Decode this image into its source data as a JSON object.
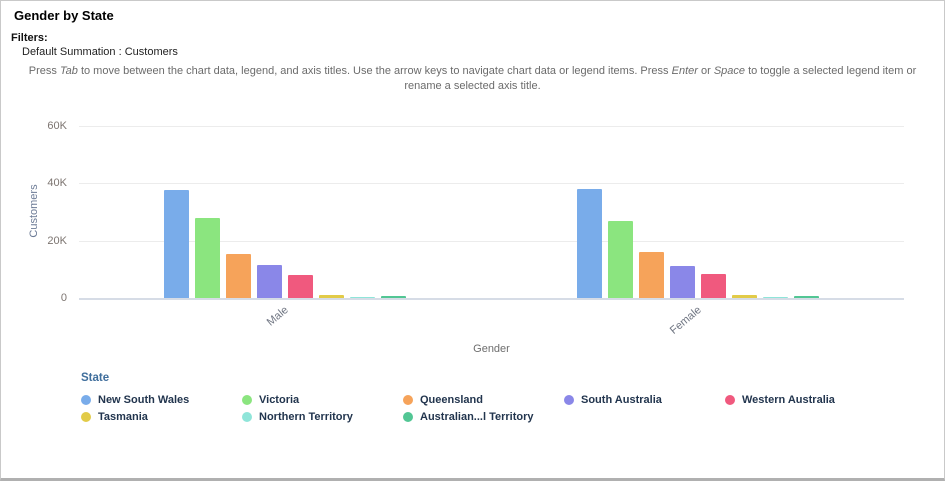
{
  "header": {
    "title": "Gender by State",
    "filters_label": "Filters:",
    "filter_value": "Default Summation : Customers"
  },
  "instructions": {
    "seg1": "Press ",
    "key_tab": "Tab",
    "seg2": " to move between the chart data, legend, and axis titles. Use the arrow keys to navigate chart data or legend items. Press ",
    "key_enter": "Enter",
    "seg3": " or ",
    "key_space": "Space",
    "seg4": " to toggle a selected legend item or rename a selected axis title."
  },
  "colors": {
    "legend_title": "#3F6E9C",
    "y_axis_title": "#6C7B96",
    "tick_label": "#7C7470",
    "instruction_text": "#6B6B6B"
  },
  "chart_data": {
    "type": "bar",
    "title": "Gender by State",
    "xlabel": "Gender",
    "ylabel": "Customers",
    "categories": [
      "Male",
      "Female"
    ],
    "y_ticks": [
      "0",
      "20K",
      "40K",
      "60K"
    ],
    "ylim": [
      0,
      60000
    ],
    "grid": "horizontal",
    "legend_title": "State",
    "legend_position": "bottom",
    "series": [
      {
        "name": "New South Wales",
        "color": "#79ACEA",
        "values": [
          37500,
          38000
        ]
      },
      {
        "name": "Victoria",
        "color": "#8BE57F",
        "values": [
          28000,
          27000
        ]
      },
      {
        "name": "Queensland",
        "color": "#F6A35A",
        "values": [
          15500,
          16000
        ]
      },
      {
        "name": "South Australia",
        "color": "#8A87E8",
        "values": [
          11600,
          11100
        ]
      },
      {
        "name": "Western Australia",
        "color": "#F0597E",
        "values": [
          8000,
          8400
        ]
      },
      {
        "name": "Tasmania",
        "color": "#E2CB48",
        "values": [
          1200,
          1100
        ]
      },
      {
        "name": "Northern Territory",
        "color": "#8FE5D9",
        "values": [
          300,
          300
        ]
      },
      {
        "name": "Australian...l Territory",
        "color": "#52C694",
        "values": [
          800,
          700
        ]
      }
    ]
  }
}
